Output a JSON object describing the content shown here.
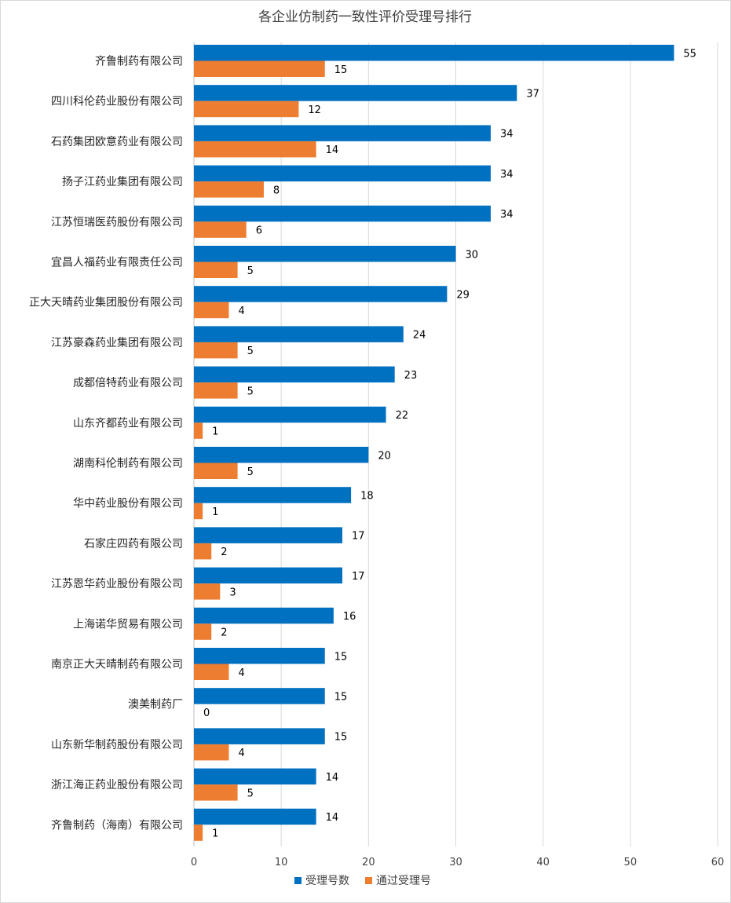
{
  "chart_data": {
    "type": "bar",
    "orientation": "horizontal",
    "title": "各企业仿制药一致性评价受理号排行",
    "xlabel": "",
    "ylabel": "",
    "xlim": [
      0,
      60
    ],
    "xticks": [
      0,
      10,
      20,
      30,
      40,
      50,
      60
    ],
    "grid": true,
    "legend_position": "bottom",
    "categories": [
      "齐鲁制药有限公司",
      "四川科伦药业股份有限公司",
      "石药集团欧意药业有限公司",
      "扬子江药业集团有限公司",
      "江苏恒瑞医药股份有限公司",
      "宜昌人福药业有限责任公司",
      "正大天晴药业集团股份有限公司",
      "江苏豪森药业集团有限公司",
      "成都倍特药业有限公司",
      "山东齐都药业有限公司",
      "湖南科伦制药有限公司",
      "华中药业股份有限公司",
      "石家庄四药有限公司",
      "江苏恩华药业股份有限公司",
      "上海诺华贸易有限公司",
      "南京正大天晴制药有限公司",
      "澳美制药厂",
      "山东新华制药股份有限公司",
      "浙江海正药业股份有限公司",
      "齐鲁制药（海南）有限公司"
    ],
    "series": [
      {
        "name": "受理号数",
        "color": "#0070c0",
        "values": [
          55,
          37,
          34,
          34,
          34,
          30,
          29,
          24,
          23,
          22,
          20,
          18,
          17,
          17,
          16,
          15,
          15,
          15,
          14,
          14
        ]
      },
      {
        "name": "通过受理号",
        "color": "#ed7d31",
        "values": [
          15,
          12,
          14,
          8,
          6,
          5,
          4,
          5,
          5,
          1,
          5,
          1,
          2,
          3,
          2,
          4,
          0,
          4,
          5,
          1
        ]
      }
    ]
  }
}
